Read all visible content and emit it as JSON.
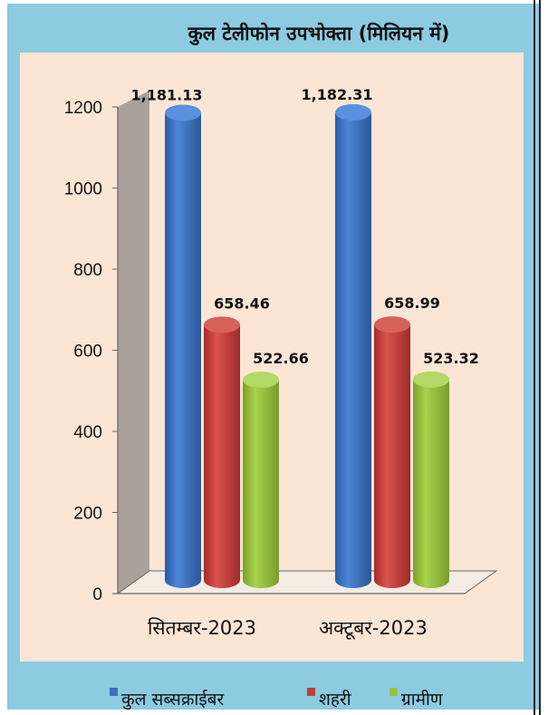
{
  "chart_data": {
    "type": "bar",
    "title": "कुल टेलीफोन उपभोक्ता (मिलियन में)",
    "categories": [
      "सितम्बर-2023",
      "अक्टूबर-2023"
    ],
    "series": [
      {
        "name": "कुल सब्सक्राईबर",
        "values": [
          1181.13,
          1182.31
        ],
        "labels": [
          "1,181.13",
          "1,182.31"
        ],
        "color": "#3a6fc4"
      },
      {
        "name": "शहरी",
        "values": [
          658.46,
          658.99
        ],
        "labels": [
          "658.46",
          "658.99"
        ],
        "color": "#c63c3a"
      },
      {
        "name": "ग्रामीण",
        "values": [
          522.66,
          523.32
        ],
        "labels": [
          "522.66",
          "523.32"
        ],
        "color": "#97c23c"
      }
    ],
    "ylim": [
      0,
      1200
    ],
    "yticks": [
      0,
      200,
      400,
      600,
      800,
      1000,
      1200
    ],
    "legend_position": "bottom",
    "grid": false,
    "style": "3d-cylinder"
  },
  "colors": {
    "outer_background": "#8ccbe0",
    "plot_background": "#fbe6d6",
    "wall": "#a9a19a",
    "floor": "#f4ebe3"
  }
}
